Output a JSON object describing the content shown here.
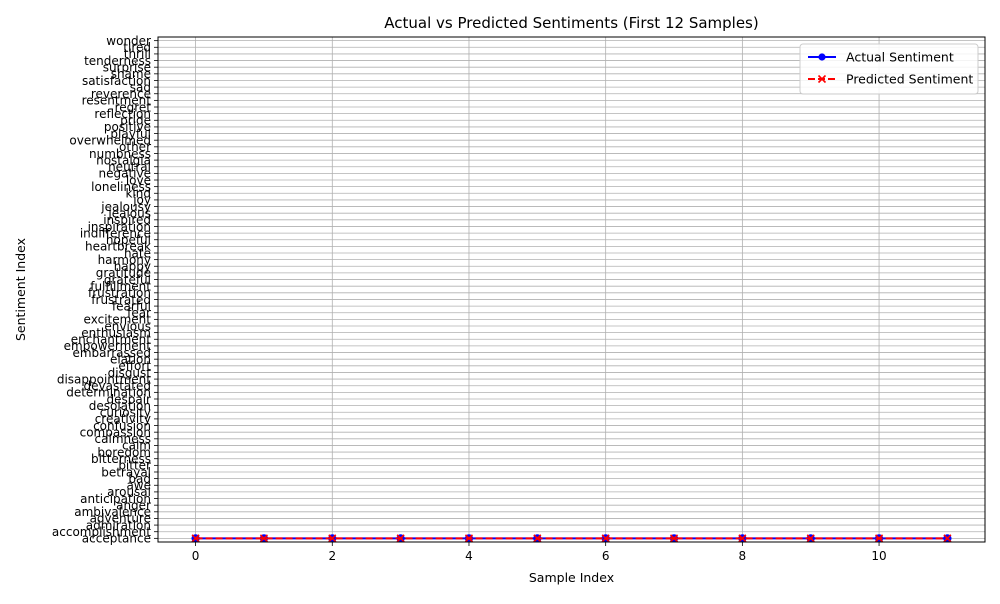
{
  "chart_data": {
    "type": "line",
    "title": "Actual vs Predicted Sentiments (First 12 Samples)",
    "xlabel": "Sample Index",
    "ylabel": "Sentiment Index",
    "xlim": [
      -0.55,
      11.55
    ],
    "xticks": [
      0,
      2,
      4,
      6,
      8,
      10
    ],
    "grid": true,
    "legend_position": "upper right",
    "categories": [
      "acceptance",
      "accomplishment",
      "admiration",
      "adventure",
      "ambivalence",
      "anger",
      "anticipation",
      "arousal",
      "awe",
      "bad",
      "betrayal",
      "bitter",
      "bitterness",
      "boredom",
      "calm",
      "calmness",
      "compassion",
      "confusion",
      "creativity",
      "curiosity",
      "desolation",
      "despair",
      "determination",
      "devastated",
      "disappointment",
      "disgust",
      "effort",
      "elation",
      "embarrassed",
      "empowerment",
      "enchantment",
      "enthusiasm",
      "envious",
      "excitement",
      "fear",
      "fearful",
      "frustrated",
      "frustration",
      "fulfillment",
      "grateful",
      "gratitude",
      "happy",
      "harmony",
      "hate",
      "heartbreak",
      "hopeful",
      "indifference",
      "inspiration",
      "inspired",
      "jealous",
      "jealousy",
      "joy",
      "kind",
      "loneliness",
      "love",
      "negative",
      "neutral",
      "nostalgia",
      "numbness",
      "other",
      "overwhelmed",
      "playful",
      "positive",
      "pride",
      "reflection",
      "regret",
      "resentment",
      "reverence",
      "sad",
      "satisfaction",
      "shame",
      "surprise",
      "tenderness",
      "thrill",
      "tired",
      "wonder"
    ],
    "x": [
      0,
      1,
      2,
      3,
      4,
      5,
      6,
      7,
      8,
      9,
      10,
      11
    ],
    "series": [
      {
        "name": "Actual Sentiment",
        "values": [
          0,
          0,
          0,
          0,
          0,
          0,
          0,
          0,
          0,
          0,
          0,
          0
        ],
        "color": "#0000ff",
        "marker": "circle",
        "linestyle": "solid"
      },
      {
        "name": "Predicted Sentiment",
        "values": [
          0,
          0,
          0,
          0,
          0,
          0,
          0,
          0,
          0,
          0,
          0,
          0
        ],
        "color": "#ff0000",
        "marker": "x",
        "linestyle": "dashed"
      }
    ]
  }
}
